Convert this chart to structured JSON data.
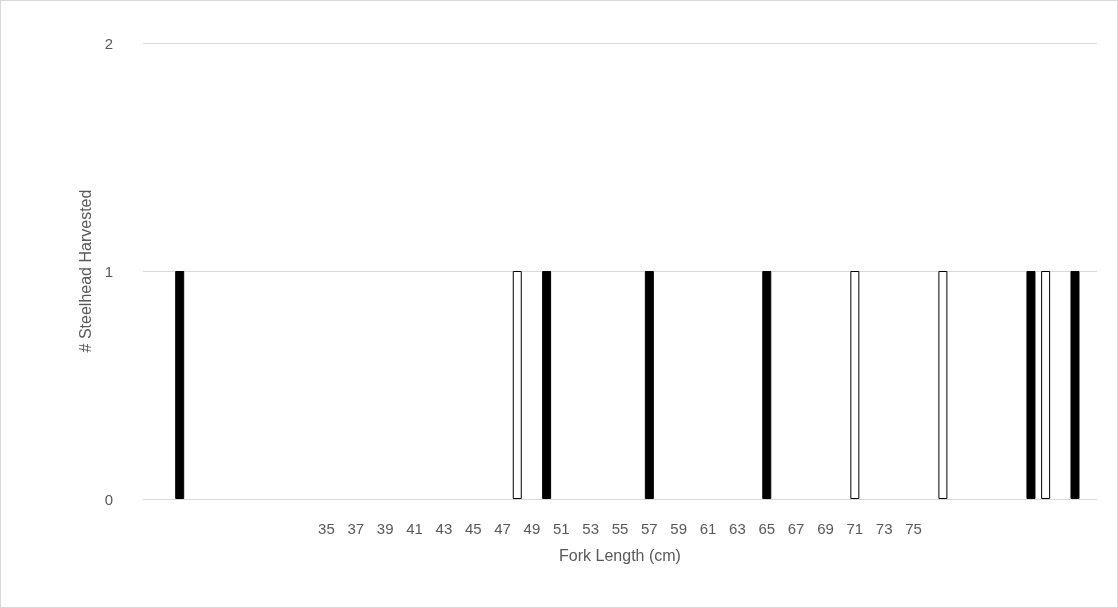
{
  "chart_data": {
    "type": "bar",
    "xlabel": "Fork Length (cm)",
    "ylabel": "# Steelhead Harvested",
    "categories": [
      null,
      null,
      null,
      null,
      null,
      null,
      null,
      null,
      null,
      null,
      null,
      null,
      "35",
      null,
      "37",
      null,
      "39",
      null,
      "41",
      null,
      "43",
      null,
      "45",
      null,
      "47",
      null,
      "49",
      null,
      "51",
      null,
      "53",
      null,
      "55",
      null,
      "57",
      null,
      "59",
      null,
      "61",
      null,
      "63",
      null,
      "65",
      null,
      "67",
      null,
      "69",
      null,
      "71",
      null,
      "73",
      null,
      "75",
      null,
      null,
      null,
      null,
      null,
      null,
      null,
      null,
      null,
      null,
      null,
      null
    ],
    "series": [
      {
        "color": "#000000",
        "values": [
          null,
          null,
          1,
          null,
          null,
          null,
          null,
          null,
          null,
          null,
          null,
          null,
          null,
          null,
          null,
          null,
          null,
          null,
          null,
          null,
          null,
          null,
          null,
          null,
          null,
          null,
          null,
          1,
          null,
          null,
          null,
          null,
          null,
          null,
          1,
          null,
          null,
          null,
          null,
          null,
          null,
          null,
          1,
          null,
          null,
          null,
          null,
          null,
          null,
          null,
          null,
          null,
          null,
          null,
          null,
          null,
          null,
          null,
          null,
          null,
          1,
          null,
          null,
          1,
          null
        ]
      },
      {
        "color": "#ffffff",
        "values": [
          null,
          null,
          null,
          null,
          null,
          null,
          null,
          null,
          null,
          null,
          null,
          null,
          null,
          null,
          null,
          null,
          null,
          null,
          null,
          null,
          null,
          null,
          null,
          null,
          null,
          1,
          null,
          null,
          null,
          null,
          null,
          null,
          null,
          null,
          null,
          null,
          null,
          null,
          null,
          null,
          null,
          null,
          null,
          null,
          null,
          null,
          null,
          null,
          1,
          null,
          null,
          null,
          null,
          null,
          1,
          null,
          null,
          null,
          null,
          null,
          null,
          1,
          null,
          null,
          null
        ]
      }
    ],
    "ylim": [
      0,
      2
    ],
    "yticks": [
      0,
      1,
      2
    ],
    "grid": "y"
  }
}
